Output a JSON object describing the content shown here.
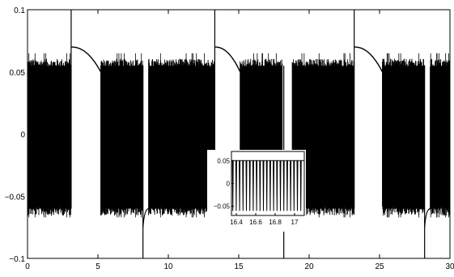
{
  "chart_data": [
    {
      "type": "line",
      "title": "",
      "xlabel": "",
      "ylabel": "",
      "xlim": [
        0,
        30
      ],
      "ylim": [
        -0.1,
        0.1
      ],
      "xticks": [
        0,
        5,
        10,
        15,
        20,
        25,
        30
      ],
      "xtick_labels": [
        "0",
        "5",
        "10",
        "15",
        "20",
        "25",
        "30"
      ],
      "yticks": [
        -0.1,
        -0.05,
        0,
        0.05,
        0.1
      ],
      "ytick_labels": [
        "−0.1",
        "−0.05",
        "0",
        "0.05",
        "0.1"
      ],
      "grid": false,
      "line_color": "#000000",
      "series": [
        {
          "oscillation_envelope": {
            "upper": 0.055,
            "lower": -0.06,
            "upper_peak": 0.065,
            "lower_peak": -0.067
          },
          "oscillation_intervals": [
            [
              0,
              3.1
            ],
            [
              5.2,
              8.2
            ],
            [
              8.6,
              13.3
            ],
            [
              15.1,
              18.1
            ],
            [
              18.8,
              23.2
            ],
            [
              25.2,
              28.2
            ],
            [
              28.6,
              30
            ]
          ],
          "spikes": [
            {
              "x": 3.1,
              "y_min": -0.06,
              "y_max": 0.1
            },
            {
              "x": 8.2,
              "y_min": -0.1,
              "y_max": 0.055
            },
            {
              "x": 13.3,
              "y_min": -0.06,
              "y_max": 0.1
            },
            {
              "x": 18.2,
              "y_min": -0.1,
              "y_max": 0.055
            },
            {
              "x": 23.2,
              "y_min": -0.06,
              "y_max": 0.1
            },
            {
              "x": 28.2,
              "y_min": -0.1,
              "y_max": 0.055
            }
          ],
          "relaxation_segments": [
            {
              "x_start": 3.1,
              "x_end": 5.2,
              "y_start": 0.07,
              "y_end": 0.05
            },
            {
              "x_start": 13.3,
              "x_end": 15.1,
              "y_start": 0.07,
              "y_end": 0.05
            },
            {
              "x_start": 23.2,
              "x_end": 25.2,
              "y_start": 0.07,
              "y_end": 0.05
            }
          ],
          "recovery_segments": [
            {
              "x_start": 8.2,
              "x_end": 8.6,
              "y_start": -0.075,
              "y_end": -0.06
            },
            {
              "x_start": 28.2,
              "x_end": 28.6,
              "y_start": -0.075,
              "y_end": -0.06
            }
          ]
        }
      ]
    },
    {
      "type": "line",
      "title": "",
      "xlabel": "",
      "ylabel": "",
      "xlim": [
        16.35,
        17.1
      ],
      "ylim": [
        -0.07,
        0.07
      ],
      "xticks": [
        16.4,
        16.6,
        16.8,
        17
      ],
      "xtick_labels": [
        "16.4",
        "16.6",
        "16.8",
        "17"
      ],
      "yticks": [
        -0.05,
        0,
        0.05
      ],
      "ytick_labels": [
        "−0.05",
        "0",
        "0.05"
      ],
      "grid": false,
      "line_color": "#000000",
      "series": [
        {
          "spike_period": 0.035,
          "baseline": 0.05,
          "spike_min": -0.06
        }
      ]
    }
  ]
}
